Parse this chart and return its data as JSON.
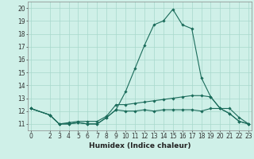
{
  "xlabel": "Humidex (Indice chaleur)",
  "x_values": [
    0,
    2,
    3,
    4,
    5,
    6,
    7,
    8,
    9,
    10,
    11,
    12,
    13,
    14,
    15,
    16,
    17,
    18,
    19,
    20,
    21,
    22,
    23
  ],
  "line1_y": [
    12.2,
    11.7,
    11.0,
    11.0,
    11.1,
    11.0,
    11.0,
    11.5,
    12.1,
    12.0,
    12.0,
    12.1,
    12.0,
    12.1,
    12.1,
    12.1,
    12.1,
    12.0,
    12.2,
    12.2,
    12.2,
    11.5,
    11.0
  ],
  "line2_y": [
    12.2,
    11.7,
    11.0,
    11.0,
    11.1,
    11.0,
    11.0,
    11.5,
    12.1,
    13.5,
    15.3,
    17.1,
    18.7,
    19.0,
    19.9,
    18.7,
    18.4,
    14.6,
    13.1,
    12.2,
    11.8,
    11.2,
    11.0
  ],
  "line3_y": [
    12.2,
    11.7,
    11.0,
    11.1,
    11.2,
    11.2,
    11.2,
    11.6,
    12.5,
    12.5,
    12.6,
    12.7,
    12.8,
    12.9,
    13.0,
    13.1,
    13.2,
    13.2,
    13.1,
    12.2,
    11.8,
    11.2,
    11.0
  ],
  "background_color": "#cff0e8",
  "grid_color": "#a8d8cc",
  "line_color": "#1a6b5a",
  "ylim": [
    10.5,
    20.5
  ],
  "yticks": [
    11,
    12,
    13,
    14,
    15,
    16,
    17,
    18,
    19,
    20
  ],
  "xticks": [
    0,
    2,
    3,
    4,
    5,
    6,
    7,
    8,
    9,
    10,
    11,
    12,
    13,
    14,
    15,
    16,
    17,
    18,
    19,
    20,
    21,
    22,
    23
  ],
  "markersize": 1.8,
  "linewidth": 0.8,
  "xlabel_fontsize": 6.5,
  "tick_fontsize": 5.5
}
